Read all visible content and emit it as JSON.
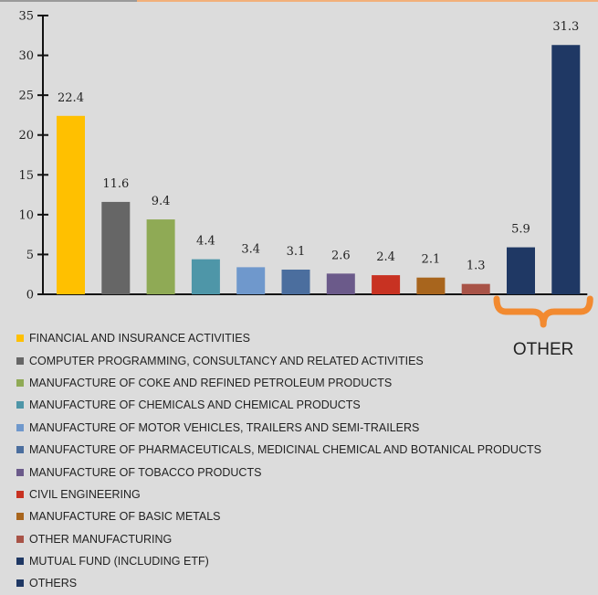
{
  "colors": {
    "background": "#dcdcdc",
    "axis": "#111111",
    "bracket": "#f28a30",
    "top_line_left": "#9a9a9a",
    "top_line_right": "#f2b07a"
  },
  "chart_data": {
    "type": "bar",
    "ylim": [
      0,
      35
    ],
    "yticks": [
      "0",
      "5",
      "10",
      "15",
      "20",
      "25",
      "30",
      "35"
    ],
    "categories": [
      "FINANCIAL AND INSURANCE ACTIVITIES",
      "COMPUTER PROGRAMMING, CONSULTANCY AND RELATED ACTIVITIES",
      "MANUFACTURE OF COKE AND REFINED PETROLEUM PRODUCTS",
      "MANUFACTURE OF CHEMICALS AND CHEMICAL PRODUCTS",
      "MANUFACTURE OF MOTOR VEHICLES, TRAILERS AND SEMI-TRAILERS",
      "MANUFACTURE OF PHARMACEUTICALS, MEDICINAL CHEMICAL AND BOTANICAL PRODUCTS",
      "MANUFACTURE OF TOBACCO PRODUCTS",
      "CIVIL ENGINEERING",
      "MANUFACTURE OF BASIC METALS",
      "OTHER MANUFACTURING",
      "MUTUAL FUND (INCLUDING ETF)",
      "OTHERS"
    ],
    "values": [
      22.4,
      11.6,
      9.4,
      4.4,
      3.4,
      3.1,
      2.6,
      2.4,
      2.1,
      1.3,
      5.9,
      31.3
    ],
    "value_labels": [
      "22.4",
      "11.6",
      "9.4",
      "4.4",
      "3.4",
      "3.1",
      "2.6",
      "2.4",
      "2.1",
      "1.3",
      "5.9",
      "31.3"
    ],
    "bar_colors": [
      "#ffc000",
      "#666666",
      "#8faa55",
      "#4e96a8",
      "#6f98cc",
      "#4b6e9e",
      "#6b5a8a",
      "#c83222",
      "#a8651d",
      "#a85347",
      "#1f3864",
      "#1f3864"
    ],
    "grid": false,
    "legend_position": "bottom",
    "bracket_label": "OTHER",
    "bracket_categories": [
      "MUTUAL FUND (INCLUDING ETF)",
      "OTHERS"
    ]
  }
}
